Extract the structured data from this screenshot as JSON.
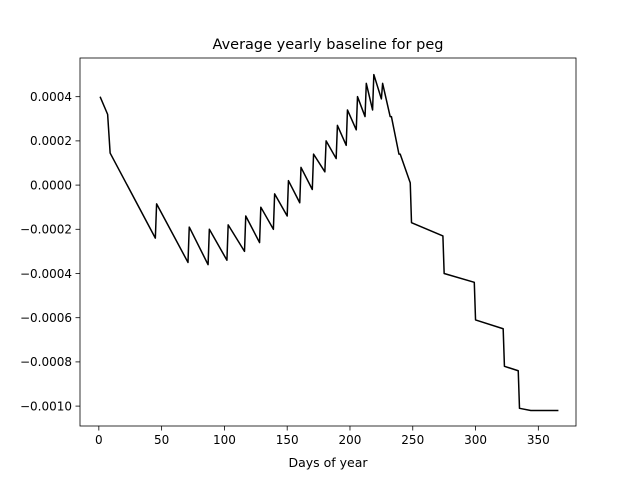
{
  "chart_data": {
    "type": "line",
    "title": "Average yearly baseline for peg",
    "xlabel": "Days of year",
    "ylabel": "",
    "xlim": [
      -15,
      380
    ],
    "ylim": [
      -0.00109,
      0.000575
    ],
    "x_ticks": [
      0,
      50,
      100,
      150,
      200,
      250,
      300,
      350
    ],
    "x_tick_labels": [
      "0",
      "50",
      "100",
      "150",
      "200",
      "250",
      "300",
      "350"
    ],
    "y_ticks": [
      0.0004,
      0.0002,
      0.0,
      -0.0002,
      -0.0004,
      -0.0006,
      -0.0008,
      -0.001
    ],
    "y_tick_labels": [
      "0.0004",
      "0.0002",
      "0.0000",
      "−0.0002",
      "−0.0004",
      "−0.0006",
      "−0.0008",
      "−0.0010"
    ],
    "grid": false,
    "legend": "none",
    "series": [
      {
        "color": "#000000",
        "x": [
          1,
          7,
          9,
          45,
          46,
          71,
          72,
          87,
          88,
          102,
          103,
          116,
          117,
          128,
          129,
          139,
          140,
          150,
          151,
          160,
          161,
          170,
          171,
          180,
          181,
          189,
          190,
          197,
          198,
          205,
          206,
          212,
          213,
          218,
          219,
          225,
          226,
          232,
          233,
          239,
          240,
          248,
          249,
          274,
          275,
          299,
          300,
          322,
          323,
          334,
          335,
          344,
          345,
          351,
          352,
          358,
          359,
          363,
          364,
          366
        ],
        "y": [
          0.0004,
          0.00032,
          0.000145,
          -0.00024,
          -8.5e-05,
          -0.00035,
          -0.00019,
          -0.00036,
          -0.0002,
          -0.00034,
          -0.00018,
          -0.0003,
          -0.00014,
          -0.00026,
          -0.0001,
          -0.0002,
          -4e-05,
          -0.00014,
          2e-05,
          -8e-05,
          8e-05,
          -2e-05,
          0.00014,
          6e-05,
          0.0002,
          0.00012,
          0.00027,
          0.00018,
          0.00034,
          0.00025,
          0.0004,
          0.00031,
          0.00046,
          0.00034,
          0.0005,
          0.00039,
          0.00046,
          0.00031,
          0.00031,
          0.00014,
          0.00014,
          1e-05,
          -0.00017,
          -0.00023,
          -0.0004,
          -0.00044,
          -0.00061,
          -0.00065,
          -0.00082,
          -0.00084,
          -0.00101,
          -0.00102,
          -0.00102,
          -0.00102,
          -0.00102,
          -0.00102,
          -0.00102,
          -0.00102,
          -0.00102,
          -0.00102
        ]
      }
    ]
  }
}
